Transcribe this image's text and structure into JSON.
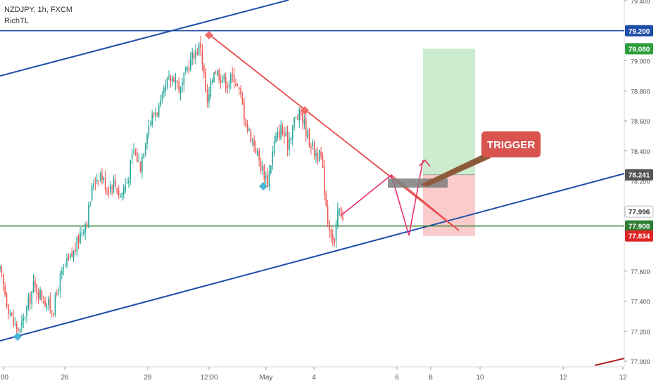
{
  "legend": {
    "symbol_line": "NZDJPY, 1h, FXCM",
    "indicator": "RichTL"
  },
  "trigger_label": "TRIGGER",
  "colors": {
    "up_candle": "#26a69a",
    "down_candle": "#ef5350",
    "channel": "#1e4fa8",
    "resistance": "#1e4fa8",
    "support": "#2e7d32",
    "trendline": "#e84b4b",
    "target_zone": "#c8eac9",
    "stop_zone": "#f9c5c5",
    "trigger_box": "#d9534f",
    "arrow_line": "#e8316a",
    "pivot_high": "#ef6b6b",
    "pivot_low": "#49b4d6"
  },
  "chart_data": {
    "type": "candlestick",
    "symbol": "NZDJPY",
    "timeframe": "1h",
    "ylim": [
      77.0,
      79.4
    ],
    "x_tick_labels": [
      ":00",
      "26",
      "28",
      "12:00",
      "May",
      "4",
      "6",
      "8",
      "10",
      "12",
      "12"
    ],
    "y_tick_labels": [
      "79.400",
      "79.000",
      "78.800",
      "78.600",
      "78.400",
      "78.200",
      "77.600",
      "77.400",
      "77.200",
      "77.000"
    ],
    "price_badges": [
      {
        "value": "79.200",
        "role": "resistance"
      },
      {
        "value": "79.080",
        "role": "target"
      },
      {
        "value": "78.241",
        "role": "entry"
      },
      {
        "value": "77.996",
        "role": "current"
      },
      {
        "value": "77.900",
        "role": "support"
      },
      {
        "value": "77.834",
        "role": "stop"
      }
    ],
    "close_path": [
      [
        0,
        77.6
      ],
      [
        4,
        77.4
      ],
      [
        8,
        77.25
      ],
      [
        12,
        77.2
      ],
      [
        16,
        77.35
      ],
      [
        20,
        77.5
      ],
      [
        24,
        77.45
      ],
      [
        28,
        77.38
      ],
      [
        32,
        77.35
      ],
      [
        36,
        77.55
      ],
      [
        40,
        77.65
      ],
      [
        44,
        77.72
      ],
      [
        48,
        77.85
      ],
      [
        52,
        77.95
      ],
      [
        56,
        78.2
      ],
      [
        60,
        78.25
      ],
      [
        64,
        78.15
      ],
      [
        68,
        78.2
      ],
      [
        72,
        78.1
      ],
      [
        76,
        78.2
      ],
      [
        80,
        78.4
      ],
      [
        84,
        78.3
      ],
      [
        88,
        78.55
      ],
      [
        92,
        78.65
      ],
      [
        96,
        78.7
      ],
      [
        100,
        78.85
      ],
      [
        104,
        78.9
      ],
      [
        108,
        78.8
      ],
      [
        112,
        78.95
      ],
      [
        116,
        79.05
      ],
      [
        120,
        79.1
      ],
      [
        124,
        78.7
      ],
      [
        128,
        78.95
      ],
      [
        132,
        78.9
      ],
      [
        136,
        78.85
      ],
      [
        140,
        78.9
      ],
      [
        144,
        78.75
      ],
      [
        148,
        78.55
      ],
      [
        152,
        78.45
      ],
      [
        156,
        78.3
      ],
      [
        160,
        78.2
      ],
      [
        164,
        78.45
      ],
      [
        168,
        78.55
      ],
      [
        172,
        78.45
      ],
      [
        176,
        78.6
      ],
      [
        180,
        78.65
      ],
      [
        184,
        78.5
      ],
      [
        188,
        78.4
      ],
      [
        192,
        78.35
      ],
      [
        196,
        77.95
      ],
      [
        200,
        77.76
      ],
      [
        202,
        78.0
      ],
      [
        205,
        77.98
      ]
    ],
    "support_level": 77.9,
    "resistance_level": 79.2,
    "trade_plan": {
      "entry": 78.241,
      "target": 79.08,
      "stop": 77.834
    }
  }
}
